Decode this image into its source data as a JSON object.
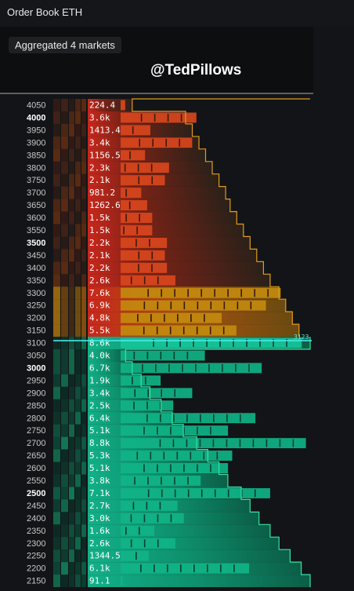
{
  "header": {
    "title": "Order Book ETH"
  },
  "panel": {
    "chip": "Aggregated 4 markets",
    "watermark": "@TedPillows"
  },
  "chart_data": {
    "type": "bar",
    "orientation": "horizontal",
    "title": "Order Book ETH",
    "current_price_label": "3123",
    "current_price_level": 3100,
    "xlim": [
      0,
      9.0
    ],
    "bold_levels": [
      4000,
      3500,
      3000,
      2500
    ],
    "rows": [
      {
        "price": "4050",
        "amount": "224.4",
        "value": 0.22,
        "side": "ask",
        "cum": 0.2
      },
      {
        "price": "4000",
        "amount": "3.6k",
        "value": 3.6,
        "side": "ask",
        "cum": 0.44
      },
      {
        "price": "3950",
        "amount": "1413.4",
        "value": 1.41,
        "side": "ask",
        "cum": 0.47
      },
      {
        "price": "3900",
        "amount": "3.4k",
        "value": 3.4,
        "side": "ask",
        "cum": 0.5
      },
      {
        "price": "3850",
        "amount": "1156.5",
        "value": 1.16,
        "side": "ask",
        "cum": 0.53
      },
      {
        "price": "3800",
        "amount": "2.3k",
        "value": 2.3,
        "side": "ask",
        "cum": 0.56
      },
      {
        "price": "3750",
        "amount": "2.1k",
        "value": 2.1,
        "side": "ask",
        "cum": 0.59
      },
      {
        "price": "3700",
        "amount": "981.2",
        "value": 0.98,
        "side": "ask",
        "cum": 0.62
      },
      {
        "price": "3650",
        "amount": "1262.6",
        "value": 1.26,
        "side": "ask",
        "cum": 0.64
      },
      {
        "price": "3600",
        "amount": "1.5k",
        "value": 1.5,
        "side": "ask",
        "cum": 0.67
      },
      {
        "price": "3550",
        "amount": "1.5k",
        "value": 1.5,
        "side": "ask",
        "cum": 0.7
      },
      {
        "price": "3500",
        "amount": "2.2k",
        "value": 2.2,
        "side": "ask",
        "cum": 0.73
      },
      {
        "price": "3450",
        "amount": "2.1k",
        "value": 2.1,
        "side": "ask",
        "cum": 0.76
      },
      {
        "price": "3400",
        "amount": "2.2k",
        "value": 2.2,
        "side": "ask",
        "cum": 0.79
      },
      {
        "price": "3350",
        "amount": "2.6k",
        "value": 2.6,
        "side": "ask",
        "cum": 0.82
      },
      {
        "price": "3300",
        "amount": "7.6k",
        "value": 7.6,
        "side": "ask",
        "cum": 0.86
      },
      {
        "price": "3250",
        "amount": "6.9k",
        "value": 6.9,
        "side": "ask",
        "cum": 0.89
      },
      {
        "price": "3200",
        "amount": "4.8k",
        "value": 4.8,
        "side": "ask",
        "cum": 0.92
      },
      {
        "price": "3150",
        "amount": "5.5k",
        "value": 5.5,
        "side": "ask",
        "cum": 0.95
      },
      {
        "price": "3100",
        "amount": "8.6k",
        "value": 8.6,
        "side": "bid",
        "cum": 1.0
      },
      {
        "price": "3050",
        "amount": "4.0k",
        "value": 4.0,
        "side": "bid",
        "cum": 0.17
      },
      {
        "price": "3000",
        "amount": "6.7k",
        "value": 6.7,
        "side": "bid",
        "cum": 0.2
      },
      {
        "price": "2950",
        "amount": "1.9k",
        "value": 1.9,
        "side": "bid",
        "cum": 0.24
      },
      {
        "price": "2900",
        "amount": "3.4k",
        "value": 3.4,
        "side": "bid",
        "cum": 0.28
      },
      {
        "price": "2850",
        "amount": "2.5k",
        "value": 2.5,
        "side": "bid",
        "cum": 0.33
      },
      {
        "price": "2800",
        "amount": "6.4k",
        "value": 6.4,
        "side": "bid",
        "cum": 0.38
      },
      {
        "price": "2750",
        "amount": "5.1k",
        "value": 5.1,
        "side": "bid",
        "cum": 0.43
      },
      {
        "price": "2700",
        "amount": "8.8k",
        "value": 8.8,
        "side": "bid",
        "cum": 0.49
      },
      {
        "price": "2650",
        "amount": "5.3k",
        "value": 5.3,
        "side": "bid",
        "cum": 0.54
      },
      {
        "price": "2600",
        "amount": "5.1k",
        "value": 5.1,
        "side": "bid",
        "cum": 0.59
      },
      {
        "price": "2550",
        "amount": "3.8k",
        "value": 3.8,
        "side": "bid",
        "cum": 0.63
      },
      {
        "price": "2500",
        "amount": "7.1k",
        "value": 7.1,
        "side": "bid",
        "cum": 0.69
      },
      {
        "price": "2450",
        "amount": "2.7k",
        "value": 2.7,
        "side": "bid",
        "cum": 0.73
      },
      {
        "price": "2400",
        "amount": "3.0k",
        "value": 3.0,
        "side": "bid",
        "cum": 0.77
      },
      {
        "price": "2350",
        "amount": "1.6k",
        "value": 1.6,
        "side": "bid",
        "cum": 0.82
      },
      {
        "price": "2300",
        "amount": "2.6k",
        "value": 2.6,
        "side": "bid",
        "cum": 0.86
      },
      {
        "price": "2250",
        "amount": "1344.5",
        "value": 1.34,
        "side": "bid",
        "cum": 0.91
      },
      {
        "price": "2200",
        "amount": "6.1k",
        "value": 6.1,
        "side": "bid",
        "cum": 0.96
      },
      {
        "price": "2150",
        "amount": "91.1",
        "value": 0.09,
        "side": "bid",
        "cum": 1.0
      }
    ]
  },
  "colors": {
    "ask_cumulative_dark": "#1e1f1c",
    "ask_cumulative_red": "#c9271c",
    "ask_cumulative_orange": "#a8520f",
    "ask_bar_red": "#e2401f",
    "ask_bar_orange": "#c9531b",
    "ask_bar_gold": "#b88a0d",
    "ask_outline": "#e09a1f",
    "bid_cumulative": "#0fa57b",
    "bid_bar": "#12b088",
    "bid_outline": "#35e2a3",
    "current_price_line": "#46e8e8"
  }
}
